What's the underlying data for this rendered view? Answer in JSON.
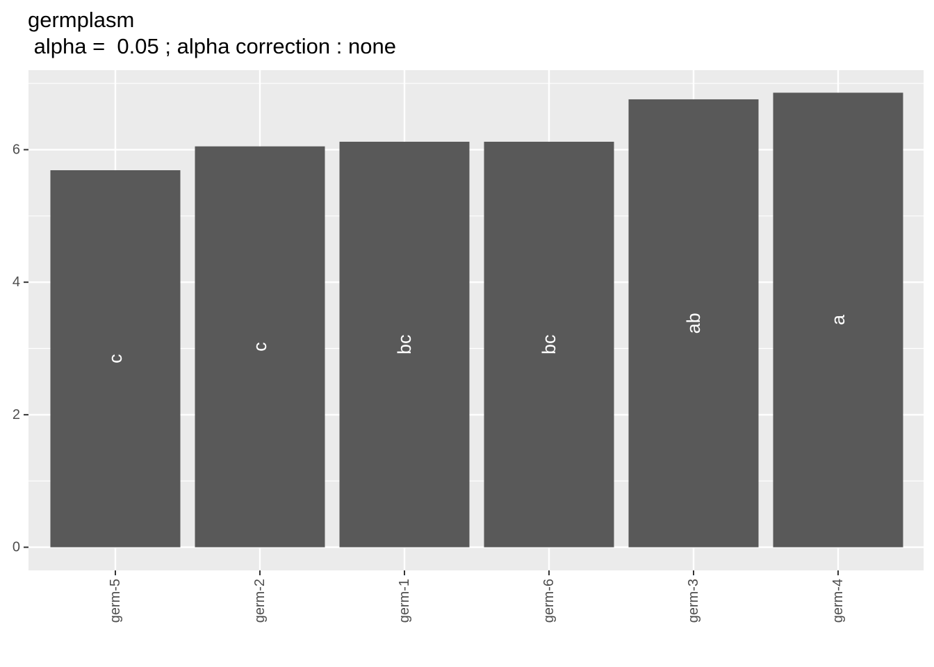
{
  "chart_data": {
    "type": "bar",
    "title": "germplasm",
    "subtitle": " alpha =  0.05 ; alpha correction : none",
    "xlabel": "",
    "ylabel": "",
    "categories": [
      "germ-5",
      "germ-2",
      "germ-1",
      "germ-6",
      "germ-3",
      "germ-4"
    ],
    "values": [
      5.69,
      6.05,
      6.12,
      6.12,
      6.76,
      6.86
    ],
    "group_letters": [
      "c",
      "c",
      "bc",
      "bc",
      "ab",
      "a"
    ],
    "ylim": [
      -0.35,
      7.2
    ],
    "yticks": [
      0,
      2,
      4,
      6
    ],
    "grid": true,
    "colors": {
      "bar": "#595959",
      "panel": "#ebebeb",
      "grid_major": "#ffffff",
      "bar_label": "#ffffff"
    }
  }
}
